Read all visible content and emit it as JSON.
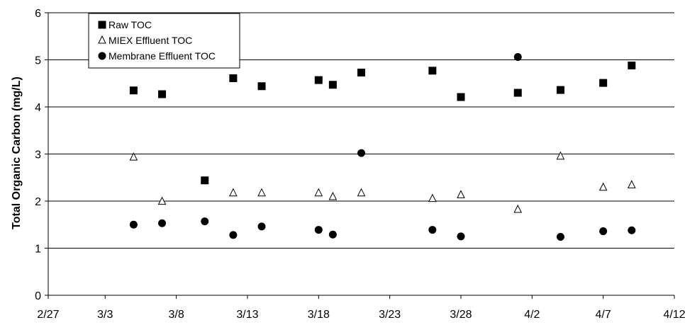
{
  "chart_data": {
    "type": "scatter",
    "title": "",
    "xlabel": "",
    "ylabel": "Total Organic Carbon (mg/L)",
    "x_ticks": [
      "2/27",
      "3/3",
      "3/8",
      "3/13",
      "3/18",
      "3/23",
      "3/28",
      "4/2",
      "4/7",
      "4/12"
    ],
    "y_ticks": [
      "0",
      "1",
      "2",
      "3",
      "4",
      "5",
      "6"
    ],
    "xlim": [
      "2/27",
      "4/12"
    ],
    "ylim": [
      0,
      6
    ],
    "grid": "horizontal",
    "legend_position": "top-left",
    "series": [
      {
        "name": "Raw TOC",
        "marker": "filled-square",
        "color": "#000000",
        "points": [
          {
            "x": "3/5",
            "y": 4.35
          },
          {
            "x": "3/7",
            "y": 4.27
          },
          {
            "x": "3/10",
            "y": 2.44
          },
          {
            "x": "3/12",
            "y": 4.61
          },
          {
            "x": "3/14",
            "y": 4.44
          },
          {
            "x": "3/18",
            "y": 4.57
          },
          {
            "x": "3/19",
            "y": 4.47
          },
          {
            "x": "3/21",
            "y": 4.73
          },
          {
            "x": "3/26",
            "y": 4.77
          },
          {
            "x": "3/28",
            "y": 4.21
          },
          {
            "x": "4/1",
            "y": 4.3
          },
          {
            "x": "4/4",
            "y": 4.36
          },
          {
            "x": "4/7",
            "y": 4.51
          },
          {
            "x": "4/9",
            "y": 4.88
          }
        ]
      },
      {
        "name": "MIEX Effluent TOC",
        "marker": "open-triangle",
        "color": "#000000",
        "points": [
          {
            "x": "3/5",
            "y": 2.93
          },
          {
            "x": "3/7",
            "y": 1.99
          },
          {
            "x": "3/12",
            "y": 2.17
          },
          {
            "x": "3/14",
            "y": 2.17
          },
          {
            "x": "3/18",
            "y": 2.17
          },
          {
            "x": "3/19",
            "y": 2.09
          },
          {
            "x": "3/21",
            "y": 2.17
          },
          {
            "x": "3/26",
            "y": 2.05
          },
          {
            "x": "3/28",
            "y": 2.13
          },
          {
            "x": "4/1",
            "y": 1.82
          },
          {
            "x": "4/4",
            "y": 2.95
          },
          {
            "x": "4/7",
            "y": 2.29
          },
          {
            "x": "4/9",
            "y": 2.34
          }
        ]
      },
      {
        "name": "Membrane Effluent TOC",
        "marker": "filled-circle",
        "color": "#000000",
        "points": [
          {
            "x": "3/5",
            "y": 1.5
          },
          {
            "x": "3/7",
            "y": 1.53
          },
          {
            "x": "3/10",
            "y": 1.57
          },
          {
            "x": "3/12",
            "y": 1.28
          },
          {
            "x": "3/14",
            "y": 1.46
          },
          {
            "x": "3/18",
            "y": 1.39
          },
          {
            "x": "3/19",
            "y": 1.29
          },
          {
            "x": "3/21",
            "y": 3.02
          },
          {
            "x": "3/26",
            "y": 1.39
          },
          {
            "x": "3/28",
            "y": 1.25
          },
          {
            "x": "4/1",
            "y": 5.06
          },
          {
            "x": "4/4",
            "y": 1.24
          },
          {
            "x": "4/7",
            "y": 1.36
          },
          {
            "x": "4/9",
            "y": 1.38
          }
        ]
      }
    ]
  }
}
